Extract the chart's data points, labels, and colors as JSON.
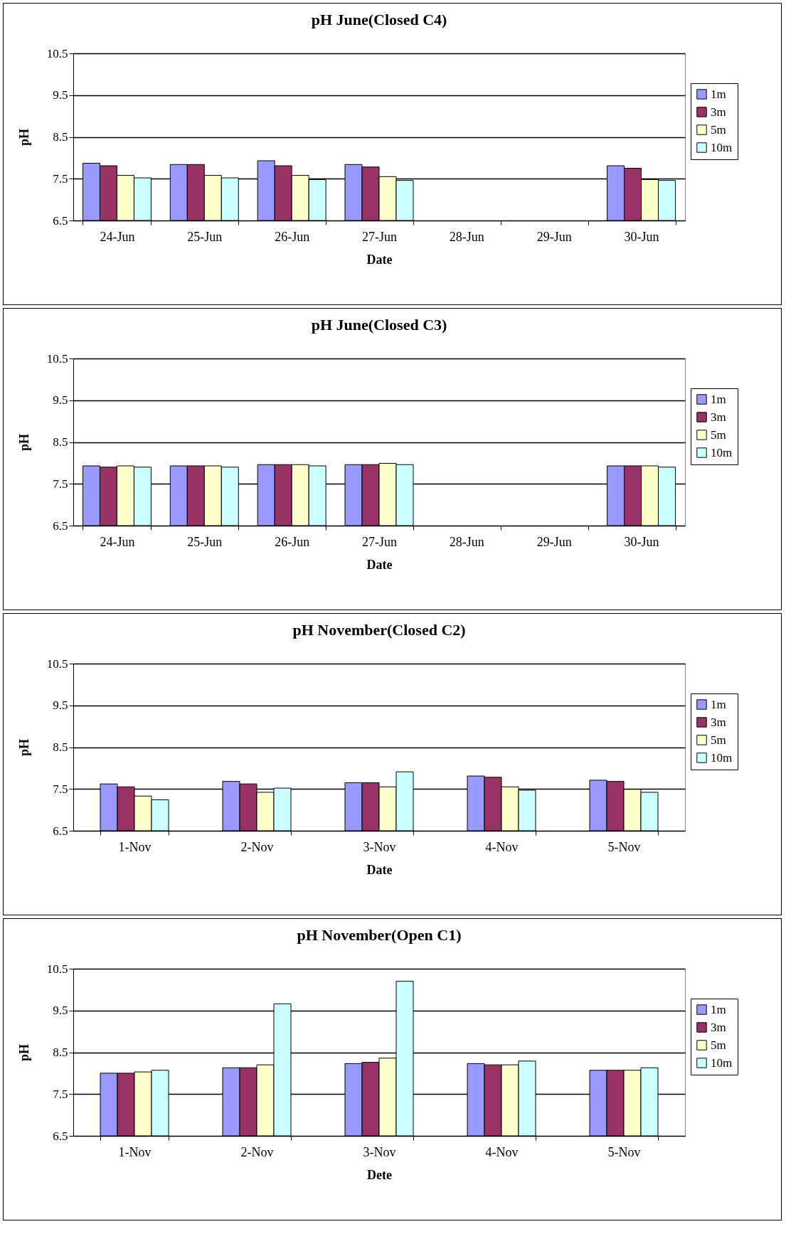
{
  "chart_data": [
    {
      "type": "bar",
      "title": "pH June(Closed C4)",
      "xlabel": "Date",
      "ylabel": "pH",
      "categories": [
        "24-Jun",
        "25-Jun",
        "26-Jun",
        "27-Jun",
        "28-Jun",
        "29-Jun",
        "30-Jun"
      ],
      "ylim": [
        6.5,
        10.5
      ],
      "yticks": [
        6.5,
        7.5,
        8.5,
        9.5,
        10.5
      ],
      "grid": "y",
      "legend": "right",
      "series": [
        {
          "name": "1m",
          "color": "#9999ff",
          "values": [
            7.87,
            7.84,
            7.93,
            7.84,
            null,
            null,
            7.81
          ]
        },
        {
          "name": "3m",
          "color": "#993366",
          "values": [
            7.81,
            7.84,
            7.81,
            7.78,
            null,
            null,
            7.75
          ]
        },
        {
          "name": "5m",
          "color": "#ffffcc",
          "values": [
            7.58,
            7.58,
            7.58,
            7.55,
            null,
            null,
            7.48
          ]
        },
        {
          "name": "10m",
          "color": "#ccffff",
          "values": [
            7.52,
            7.52,
            7.48,
            7.46,
            null,
            null,
            7.46
          ]
        }
      ]
    },
    {
      "type": "bar",
      "title": "pH June(Closed C3)",
      "xlabel": "Date",
      "ylabel": "pH",
      "categories": [
        "24-Jun",
        "25-Jun",
        "26-Jun",
        "27-Jun",
        "28-Jun",
        "29-Jun",
        "30-Jun"
      ],
      "ylim": [
        6.5,
        10.5
      ],
      "yticks": [
        6.5,
        7.5,
        8.5,
        9.5,
        10.5
      ],
      "grid": "y",
      "legend": "right",
      "series": [
        {
          "name": "1m",
          "color": "#9999ff",
          "values": [
            7.93,
            7.93,
            7.96,
            7.96,
            null,
            null,
            7.93
          ]
        },
        {
          "name": "3m",
          "color": "#993366",
          "values": [
            7.9,
            7.93,
            7.96,
            7.96,
            null,
            null,
            7.93
          ]
        },
        {
          "name": "5m",
          "color": "#ffffcc",
          "values": [
            7.93,
            7.93,
            7.96,
            7.99,
            null,
            null,
            7.93
          ]
        },
        {
          "name": "10m",
          "color": "#ccffff",
          "values": [
            7.9,
            7.9,
            7.93,
            7.96,
            null,
            null,
            7.9
          ]
        }
      ]
    },
    {
      "type": "bar",
      "title": "pH November(Closed C2)",
      "xlabel": "Date",
      "ylabel": "pH",
      "categories": [
        "1-Nov",
        "2-Nov",
        "3-Nov",
        "4-Nov",
        "5-Nov"
      ],
      "ylim": [
        6.5,
        10.5
      ],
      "yticks": [
        6.5,
        7.5,
        8.5,
        9.5,
        10.5
      ],
      "grid": "y",
      "legend": "right",
      "series": [
        {
          "name": "1m",
          "color": "#9999ff",
          "values": [
            7.62,
            7.68,
            7.65,
            7.81,
            7.71
          ]
        },
        {
          "name": "3m",
          "color": "#993366",
          "values": [
            7.55,
            7.62,
            7.65,
            7.78,
            7.68
          ]
        },
        {
          "name": "5m",
          "color": "#ffffcc",
          "values": [
            7.33,
            7.42,
            7.55,
            7.55,
            7.49
          ]
        },
        {
          "name": "10m",
          "color": "#ccffff",
          "values": [
            7.24,
            7.52,
            7.91,
            7.47,
            7.42
          ]
        }
      ]
    },
    {
      "type": "bar",
      "title": "pH November(Open C1)",
      "xlabel": "Dete",
      "ylabel": "pH",
      "categories": [
        "1-Nov",
        "2-Nov",
        "3-Nov",
        "4-Nov",
        "5-Nov"
      ],
      "ylim": [
        6.5,
        10.5
      ],
      "yticks": [
        6.5,
        7.5,
        8.5,
        9.5,
        10.5
      ],
      "grid": "y",
      "legend": "right",
      "series": [
        {
          "name": "1m",
          "color": "#9999ff",
          "values": [
            8.0,
            8.13,
            8.23,
            8.23,
            8.07
          ]
        },
        {
          "name": "3m",
          "color": "#993366",
          "values": [
            8.0,
            8.13,
            8.26,
            8.2,
            8.07
          ]
        },
        {
          "name": "5m",
          "color": "#ffffcc",
          "values": [
            8.03,
            8.2,
            8.36,
            8.2,
            8.07
          ]
        },
        {
          "name": "10m",
          "color": "#ccffff",
          "values": [
            8.07,
            9.66,
            10.2,
            8.29,
            8.13
          ]
        }
      ]
    }
  ]
}
